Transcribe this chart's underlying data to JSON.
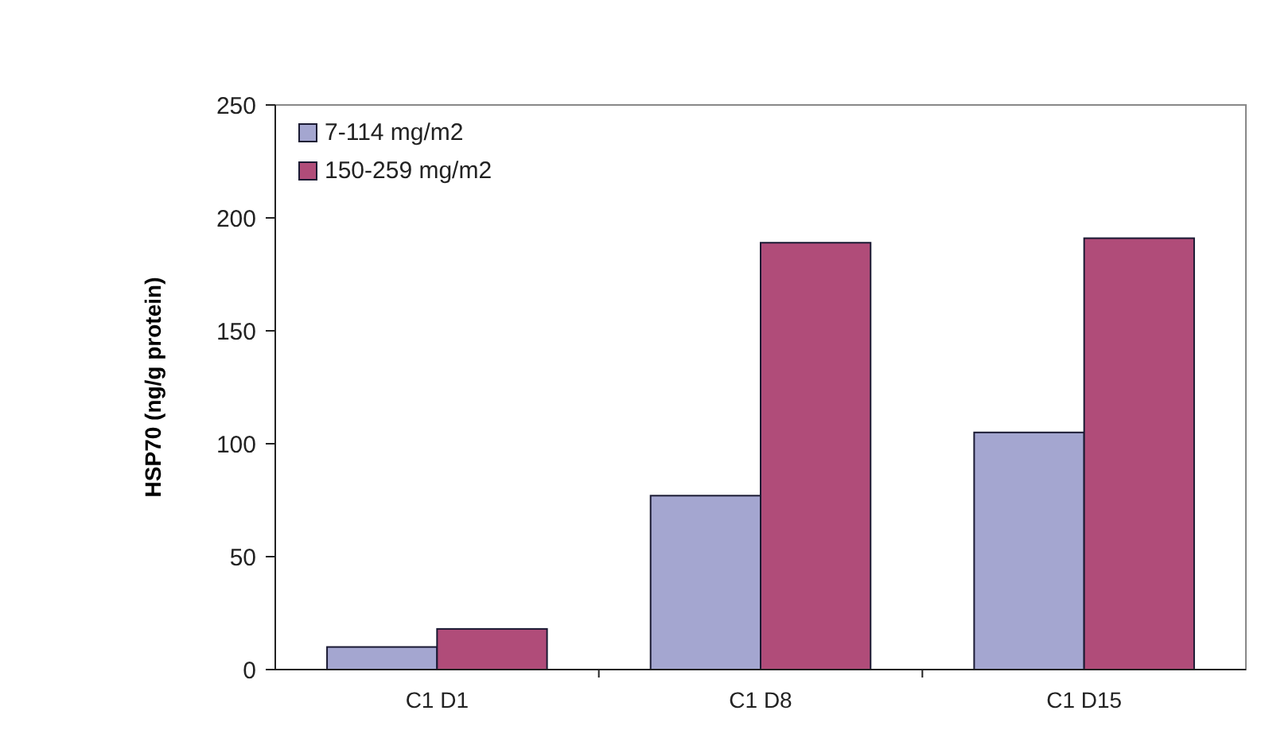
{
  "chart_data": {
    "type": "bar",
    "ylabel": "HSP70 (ng/g protein)",
    "categories": [
      "C1 D1",
      "C1 D8",
      "C1 D15"
    ],
    "series": [
      {
        "name": "7-114 mg/m2",
        "color": "#a4a6d0",
        "values": [
          10,
          77,
          105
        ]
      },
      {
        "name": "150-259 mg/m2",
        "color": "#b04c79",
        "values": [
          18,
          189,
          191
        ]
      }
    ],
    "ylim": [
      0,
      250
    ],
    "yticks": [
      0,
      50,
      100,
      150,
      200,
      250
    ],
    "grid": false,
    "legend": "top left"
  }
}
